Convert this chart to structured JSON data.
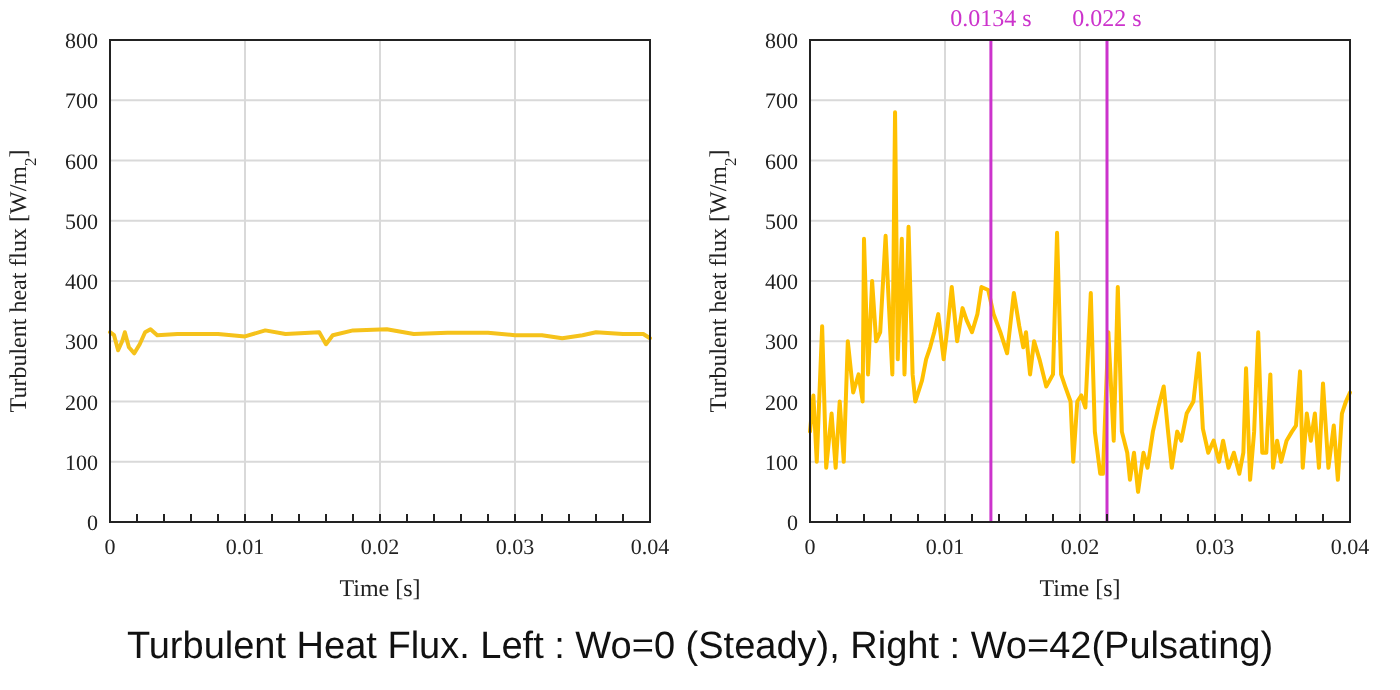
{
  "chart_data": [
    {
      "type": "line",
      "xlabel": "Time [s]",
      "ylabel": "Turbulent heat flux [W/m$_{2}$]",
      "xlim": [
        0,
        0.04
      ],
      "ylim": [
        0,
        800
      ],
      "xticks": [
        0,
        {
          "value": 0.002,
          "label": null
        },
        {
          "value": 0.004,
          "label": null
        },
        {
          "value": 0.006,
          "label": null
        },
        {
          "value": 0.008,
          "label": null
        },
        0.01,
        {
          "value": 0.012,
          "label": null
        },
        {
          "value": 0.014,
          "label": null
        },
        {
          "value": 0.016,
          "label": null
        },
        {
          "value": 0.018,
          "label": null
        },
        0.02,
        {
          "value": 0.022,
          "label": null
        },
        {
          "value": 0.024,
          "label": null
        },
        {
          "value": 0.026,
          "label": null
        },
        {
          "value": 0.028,
          "label": null
        },
        0.03,
        {
          "value": 0.032,
          "label": null
        },
        {
          "value": 0.034,
          "label": null
        },
        {
          "value": 0.036,
          "label": null
        },
        {
          "value": 0.038,
          "label": null
        },
        0.04
      ],
      "yticks": [
        0,
        100,
        200,
        300,
        400,
        500,
        600,
        700,
        800
      ],
      "grid": true,
      "marker": "none",
      "line_style": "solid",
      "series": [
        {
          "color": "#f5c21b",
          "x": [
            0,
            0.0003,
            0.0006,
            0.0009,
            0.0011,
            0.0014,
            0.0018,
            0.0022,
            0.0026,
            0.003,
            0.0035,
            0.005,
            0.008,
            0.01,
            0.0115,
            0.013,
            0.0155,
            0.016,
            0.0165,
            0.018,
            0.0205,
            0.0225,
            0.025,
            0.028,
            0.03,
            0.032,
            0.0335,
            0.035,
            0.036,
            0.038,
            0.0395,
            0.04
          ],
          "values": [
            315,
            310,
            285,
            300,
            315,
            290,
            280,
            295,
            315,
            320,
            310,
            312,
            312,
            308,
            318,
            312,
            315,
            295,
            310,
            318,
            320,
            312,
            314,
            314,
            310,
            310,
            305,
            310,
            315,
            312,
            312,
            305
          ]
        }
      ]
    },
    {
      "type": "line",
      "xlabel": "Time [s]",
      "ylabel": "Turbulent heat flux [W/m$_{2}$]",
      "xlim": [
        0,
        0.04
      ],
      "ylim": [
        0,
        800
      ],
      "xticks": [
        0,
        {
          "value": 0.002,
          "label": null
        },
        {
          "value": 0.004,
          "label": null
        },
        {
          "value": 0.006,
          "label": null
        },
        {
          "value": 0.008,
          "label": null
        },
        0.01,
        {
          "value": 0.012,
          "label": null
        },
        {
          "value": 0.014,
          "label": null
        },
        {
          "value": 0.016,
          "label": null
        },
        {
          "value": 0.018,
          "label": null
        },
        0.02,
        {
          "value": 0.022,
          "label": null
        },
        {
          "value": 0.024,
          "label": null
        },
        {
          "value": 0.026,
          "label": null
        },
        {
          "value": 0.028,
          "label": null
        },
        0.03,
        {
          "value": 0.032,
          "label": null
        },
        {
          "value": 0.034,
          "label": null
        },
        {
          "value": 0.036,
          "label": null
        },
        {
          "value": 0.038,
          "label": null
        },
        0.04
      ],
      "yticks": [
        0,
        100,
        200,
        300,
        400,
        500,
        600,
        700,
        800
      ],
      "grid": true,
      "marker": "none",
      "line_style": "solid",
      "ref_lines": [
        {
          "axis": "x",
          "value": 0.0134,
          "label": "0.0134 s",
          "color": "#cc33cc"
        },
        {
          "axis": "x",
          "value": 0.022,
          "label": "0.022 s",
          "color": "#cc33cc"
        }
      ],
      "series": [
        {
          "color": "#ffc000",
          "x": [
            0,
            0.00025,
            0.0005,
            0.0009,
            0.0012,
            0.0016,
            0.0019,
            0.0022,
            0.0025,
            0.0028,
            0.0032,
            0.0036,
            0.0039,
            0.004,
            0.0043,
            0.0046,
            0.0049,
            0.0052,
            0.0056,
            0.0058,
            0.0061,
            0.0063,
            0.0065,
            0.0068,
            0.007,
            0.0073,
            0.0076,
            0.0078,
            0.0083,
            0.0086,
            0.0089,
            0.0092,
            0.0095,
            0.0099,
            0.0102,
            0.0105,
            0.0109,
            0.0113,
            0.0116,
            0.012,
            0.0124,
            0.0127,
            0.0132,
            0.0136,
            0.0141,
            0.0146,
            0.0151,
            0.0155,
            0.0158,
            0.016,
            0.0163,
            0.0166,
            0.017,
            0.0175,
            0.018,
            0.0183,
            0.0186,
            0.0189,
            0.0193,
            0.0195,
            0.0198,
            0.0201,
            0.0204,
            0.0208,
            0.0211,
            0.0215,
            0.0217,
            0.0221,
            0.0225,
            0.0228,
            0.0231,
            0.0235,
            0.0237,
            0.024,
            0.0243,
            0.0247,
            0.025,
            0.0254,
            0.0258,
            0.0262,
            0.0265,
            0.0268,
            0.0272,
            0.0275,
            0.0279,
            0.0284,
            0.0288,
            0.0291,
            0.0295,
            0.0299,
            0.0303,
            0.0306,
            0.031,
            0.0314,
            0.0318,
            0.0321,
            0.0323,
            0.0326,
            0.0329,
            0.0332,
            0.0335,
            0.0338,
            0.0341,
            0.0343,
            0.0346,
            0.0349,
            0.0353,
            0.0357,
            0.036,
            0.0363,
            0.0365,
            0.0368,
            0.0371,
            0.0374,
            0.0377,
            0.038,
            0.0384,
            0.0388,
            0.0391,
            0.0394,
            0.0397,
            0.04
          ],
          "values": [
            150,
            210,
            100,
            325,
            90,
            180,
            90,
            200,
            100,
            300,
            215,
            245,
            200,
            470,
            245,
            400,
            300,
            315,
            475,
            380,
            245,
            680,
            270,
            470,
            245,
            490,
            245,
            200,
            235,
            270,
            290,
            315,
            345,
            270,
            325,
            390,
            300,
            355,
            335,
            315,
            345,
            390,
            385,
            345,
            315,
            280,
            380,
            325,
            290,
            315,
            245,
            300,
            270,
            225,
            245,
            480,
            245,
            225,
            200,
            100,
            200,
            210,
            190,
            380,
            150,
            80,
            80,
            315,
            135,
            390,
            150,
            115,
            70,
            115,
            50,
            115,
            90,
            150,
            190,
            225,
            155,
            90,
            150,
            135,
            180,
            200,
            280,
            155,
            115,
            135,
            100,
            135,
            90,
            115,
            80,
            115,
            255,
            70,
            150,
            315,
            115,
            115,
            245,
            90,
            135,
            100,
            135,
            150,
            160,
            250,
            90,
            180,
            135,
            180,
            90,
            230,
            90,
            160,
            70,
            180,
            200,
            215
          ]
        }
      ]
    },
    {
      "type": "other",
      "title": "Turbulent Heat Flux. Left : Wo=0 (Steady), Right : Wo=42(Pulsating)"
    }
  ]
}
